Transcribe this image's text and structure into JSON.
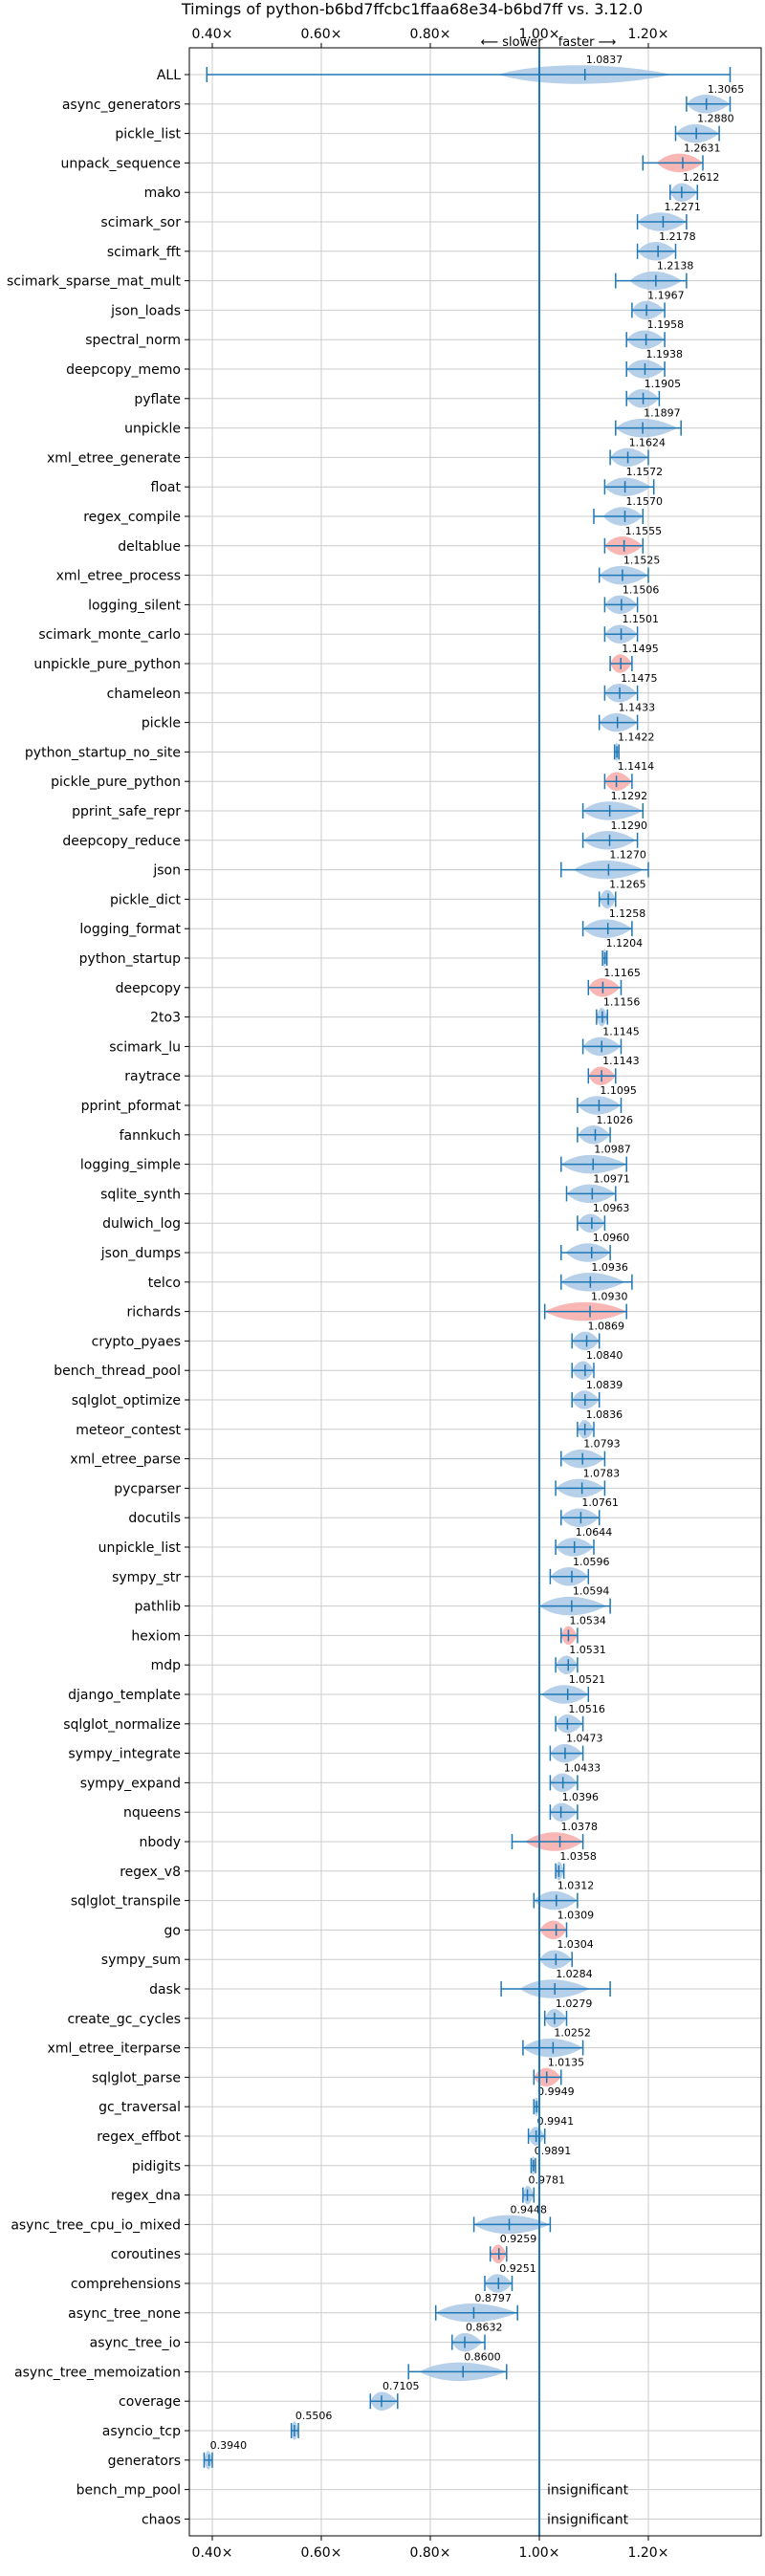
{
  "chart_data": {
    "type": "violin",
    "title": "Timings of python-b6bd7ffcbc1ffaa68e34-b6bd7ff vs. 3.12.0",
    "direction_labels": {
      "slower": "⟵ slower",
      "faster": "faster ⟶"
    },
    "x_axis": {
      "ticks": [
        0.4,
        0.6,
        0.8,
        1.0,
        1.2
      ],
      "tick_labels": [
        "0.40×",
        "0.60×",
        "0.80×",
        "1.00×",
        "1.20×"
      ],
      "range": [
        0.35,
        1.39
      ],
      "reference": 1.0
    },
    "grid": true,
    "colors": {
      "normal": "#1f77b4",
      "normal_fill": "#a9c8e6",
      "highlight_fill": "#f7a9a8",
      "grid": "#cccccc"
    },
    "insignificant_label": "insignificant",
    "benchmarks": [
      {
        "name": "ALL",
        "value": 1.0837,
        "label": "1.0837",
        "min": 0.39,
        "max": 1.35,
        "spread": 0.1,
        "highlight": false
      },
      {
        "name": "async_generators",
        "value": 1.3065,
        "label": "1.3065",
        "min": 1.27,
        "max": 1.35,
        "spread": 0.045,
        "highlight": false
      },
      {
        "name": "pickle_list",
        "value": 1.288,
        "label": "1.2880",
        "min": 1.25,
        "max": 1.33,
        "spread": 0.04,
        "highlight": false
      },
      {
        "name": "unpack_sequence",
        "value": 1.2631,
        "label": "1.2631",
        "min": 1.19,
        "max": 1.3,
        "spread": 0.03,
        "highlight": true
      },
      {
        "name": "mako",
        "value": 1.2612,
        "label": "1.2612",
        "min": 1.24,
        "max": 1.29,
        "spread": 0.02,
        "highlight": false
      },
      {
        "name": "scimark_sor",
        "value": 1.2271,
        "label": "1.2271",
        "min": 1.18,
        "max": 1.27,
        "spread": 0.04,
        "highlight": false
      },
      {
        "name": "scimark_fft",
        "value": 1.2178,
        "label": "1.2178",
        "min": 1.18,
        "max": 1.25,
        "spread": 0.03,
        "highlight": false
      },
      {
        "name": "scimark_sparse_mat_mult",
        "value": 1.2138,
        "label": "1.2138",
        "min": 1.14,
        "max": 1.27,
        "spread": 0.03,
        "highlight": false
      },
      {
        "name": "json_loads",
        "value": 1.1967,
        "label": "1.1967",
        "min": 1.17,
        "max": 1.23,
        "spread": 0.025,
        "highlight": false
      },
      {
        "name": "spectral_norm",
        "value": 1.1958,
        "label": "1.1958",
        "min": 1.16,
        "max": 1.23,
        "spread": 0.03,
        "highlight": false
      },
      {
        "name": "deepcopy_memo",
        "value": 1.1938,
        "label": "1.1938",
        "min": 1.16,
        "max": 1.23,
        "spread": 0.03,
        "highlight": false
      },
      {
        "name": "pyflate",
        "value": 1.1905,
        "label": "1.1905",
        "min": 1.16,
        "max": 1.22,
        "spread": 0.025,
        "highlight": false
      },
      {
        "name": "unpickle",
        "value": 1.1897,
        "label": "1.1897",
        "min": 1.14,
        "max": 1.26,
        "spread": 0.04,
        "highlight": false
      },
      {
        "name": "xml_etree_generate",
        "value": 1.1624,
        "label": "1.1624",
        "min": 1.13,
        "max": 1.2,
        "spread": 0.025,
        "highlight": false
      },
      {
        "name": "float",
        "value": 1.1572,
        "label": "1.1572",
        "min": 1.12,
        "max": 1.21,
        "spread": 0.03,
        "highlight": false
      },
      {
        "name": "regex_compile",
        "value": 1.157,
        "label": "1.1570",
        "min": 1.1,
        "max": 1.19,
        "spread": 0.025,
        "highlight": false
      },
      {
        "name": "deltablue",
        "value": 1.1555,
        "label": "1.1555",
        "min": 1.12,
        "max": 1.19,
        "spread": 0.025,
        "highlight": true
      },
      {
        "name": "xml_etree_process",
        "value": 1.1525,
        "label": "1.1525",
        "min": 1.11,
        "max": 1.2,
        "spread": 0.03,
        "highlight": false
      },
      {
        "name": "logging_silent",
        "value": 1.1506,
        "label": "1.1506",
        "min": 1.12,
        "max": 1.18,
        "spread": 0.025,
        "highlight": false
      },
      {
        "name": "scimark_monte_carlo",
        "value": 1.1501,
        "label": "1.1501",
        "min": 1.12,
        "max": 1.18,
        "spread": 0.025,
        "highlight": false
      },
      {
        "name": "unpickle_pure_python",
        "value": 1.1495,
        "label": "1.1495",
        "min": 1.13,
        "max": 1.17,
        "spread": 0.02,
        "highlight": true
      },
      {
        "name": "chameleon",
        "value": 1.1475,
        "label": "1.1475",
        "min": 1.12,
        "max": 1.18,
        "spread": 0.02,
        "highlight": false
      },
      {
        "name": "pickle",
        "value": 1.1433,
        "label": "1.1433",
        "min": 1.11,
        "max": 1.18,
        "spread": 0.03,
        "highlight": false
      },
      {
        "name": "python_startup_no_site",
        "value": 1.1422,
        "label": "1.1422",
        "min": 1.138,
        "max": 1.146,
        "spread": 0.004,
        "highlight": false
      },
      {
        "name": "pickle_pure_python",
        "value": 1.1414,
        "label": "1.1414",
        "min": 1.12,
        "max": 1.17,
        "spread": 0.02,
        "highlight": true
      },
      {
        "name": "pprint_safe_repr",
        "value": 1.1292,
        "label": "1.1292",
        "min": 1.08,
        "max": 1.19,
        "spread": 0.04,
        "highlight": false
      },
      {
        "name": "deepcopy_reduce",
        "value": 1.129,
        "label": "1.1290",
        "min": 1.08,
        "max": 1.18,
        "spread": 0.03,
        "highlight": false
      },
      {
        "name": "json",
        "value": 1.127,
        "label": "1.1270",
        "min": 1.04,
        "max": 1.2,
        "spread": 0.04,
        "highlight": false
      },
      {
        "name": "pickle_dict",
        "value": 1.1265,
        "label": "1.1265",
        "min": 1.11,
        "max": 1.14,
        "spread": 0.012,
        "highlight": false
      },
      {
        "name": "logging_format",
        "value": 1.1258,
        "label": "1.1258",
        "min": 1.08,
        "max": 1.17,
        "spread": 0.03,
        "highlight": false
      },
      {
        "name": "python_startup",
        "value": 1.1204,
        "label": "1.1204",
        "min": 1.116,
        "max": 1.124,
        "spread": 0.004,
        "highlight": false
      },
      {
        "name": "deepcopy",
        "value": 1.1165,
        "label": "1.1165",
        "min": 1.09,
        "max": 1.15,
        "spread": 0.02,
        "highlight": true
      },
      {
        "name": "2to3",
        "value": 1.1156,
        "label": "1.1156",
        "min": 1.105,
        "max": 1.125,
        "spread": 0.008,
        "highlight": false
      },
      {
        "name": "scimark_lu",
        "value": 1.1145,
        "label": "1.1145",
        "min": 1.08,
        "max": 1.15,
        "spread": 0.025,
        "highlight": false
      },
      {
        "name": "raytrace",
        "value": 1.1143,
        "label": "1.1143",
        "min": 1.09,
        "max": 1.14,
        "spread": 0.018,
        "highlight": true
      },
      {
        "name": "pprint_pformat",
        "value": 1.1095,
        "label": "1.1095",
        "min": 1.07,
        "max": 1.15,
        "spread": 0.025,
        "highlight": false
      },
      {
        "name": "fannkuch",
        "value": 1.1026,
        "label": "1.1026",
        "min": 1.07,
        "max": 1.13,
        "spread": 0.02,
        "highlight": false
      },
      {
        "name": "logging_simple",
        "value": 1.0987,
        "label": "1.0987",
        "min": 1.04,
        "max": 1.16,
        "spread": 0.04,
        "highlight": false
      },
      {
        "name": "sqlite_synth",
        "value": 1.0971,
        "label": "1.0971",
        "min": 1.05,
        "max": 1.14,
        "spread": 0.03,
        "highlight": false
      },
      {
        "name": "dulwich_log",
        "value": 1.0963,
        "label": "1.0963",
        "min": 1.07,
        "max": 1.12,
        "spread": 0.02,
        "highlight": false
      },
      {
        "name": "json_dumps",
        "value": 1.096,
        "label": "1.0960",
        "min": 1.04,
        "max": 1.13,
        "spread": 0.03,
        "highlight": false
      },
      {
        "name": "telco",
        "value": 1.0936,
        "label": "1.0936",
        "min": 1.04,
        "max": 1.17,
        "spread": 0.04,
        "highlight": false
      },
      {
        "name": "richards",
        "value": 1.093,
        "label": "1.0930",
        "min": 1.01,
        "max": 1.16,
        "spread": 0.06,
        "highlight": true
      },
      {
        "name": "crypto_pyaes",
        "value": 1.0869,
        "label": "1.0869",
        "min": 1.06,
        "max": 1.11,
        "spread": 0.02,
        "highlight": false
      },
      {
        "name": "bench_thread_pool",
        "value": 1.084,
        "label": "1.0840",
        "min": 1.06,
        "max": 1.1,
        "spread": 0.018,
        "highlight": false
      },
      {
        "name": "sqlglot_optimize",
        "value": 1.0839,
        "label": "1.0839",
        "min": 1.06,
        "max": 1.11,
        "spread": 0.02,
        "highlight": false
      },
      {
        "name": "meteor_contest",
        "value": 1.0836,
        "label": "1.0836",
        "min": 1.07,
        "max": 1.1,
        "spread": 0.012,
        "highlight": false
      },
      {
        "name": "xml_etree_parse",
        "value": 1.0793,
        "label": "1.0793",
        "min": 1.04,
        "max": 1.12,
        "spread": 0.03,
        "highlight": false
      },
      {
        "name": "pycparser",
        "value": 1.0783,
        "label": "1.0783",
        "min": 1.03,
        "max": 1.12,
        "spread": 0.035,
        "highlight": false
      },
      {
        "name": "docutils",
        "value": 1.0761,
        "label": "1.0761",
        "min": 1.04,
        "max": 1.11,
        "spread": 0.025,
        "highlight": false
      },
      {
        "name": "unpickle_list",
        "value": 1.0644,
        "label": "1.0644",
        "min": 1.03,
        "max": 1.1,
        "spread": 0.025,
        "highlight": false
      },
      {
        "name": "sympy_str",
        "value": 1.0596,
        "label": "1.0596",
        "min": 1.02,
        "max": 1.09,
        "spread": 0.025,
        "highlight": false
      },
      {
        "name": "pathlib",
        "value": 1.0594,
        "label": "1.0594",
        "min": 1.0,
        "max": 1.13,
        "spread": 0.04,
        "highlight": false
      },
      {
        "name": "hexiom",
        "value": 1.0534,
        "label": "1.0534",
        "min": 1.04,
        "max": 1.07,
        "spread": 0.015,
        "highlight": true
      },
      {
        "name": "mdp",
        "value": 1.0531,
        "label": "1.0531",
        "min": 1.03,
        "max": 1.07,
        "spread": 0.015,
        "highlight": false
      },
      {
        "name": "django_template",
        "value": 1.0521,
        "label": "1.0521",
        "min": 1.0,
        "max": 1.09,
        "spread": 0.03,
        "highlight": false
      },
      {
        "name": "sqlglot_normalize",
        "value": 1.0516,
        "label": "1.0516",
        "min": 1.03,
        "max": 1.08,
        "spread": 0.018,
        "highlight": false
      },
      {
        "name": "sympy_integrate",
        "value": 1.0473,
        "label": "1.0473",
        "min": 1.02,
        "max": 1.08,
        "spread": 0.02,
        "highlight": false
      },
      {
        "name": "sympy_expand",
        "value": 1.0433,
        "label": "1.0433",
        "min": 1.02,
        "max": 1.07,
        "spread": 0.02,
        "highlight": false
      },
      {
        "name": "nqueens",
        "value": 1.0396,
        "label": "1.0396",
        "min": 1.02,
        "max": 1.07,
        "spread": 0.02,
        "highlight": false
      },
      {
        "name": "nbody",
        "value": 1.0378,
        "label": "1.0378",
        "min": 0.95,
        "max": 1.08,
        "spread": 0.04,
        "highlight": true
      },
      {
        "name": "regex_v8",
        "value": 1.0358,
        "label": "1.0358",
        "min": 1.03,
        "max": 1.045,
        "spread": 0.008,
        "highlight": false
      },
      {
        "name": "sqlglot_transpile",
        "value": 1.0312,
        "label": "1.0312",
        "min": 0.99,
        "max": 1.07,
        "spread": 0.03,
        "highlight": false
      },
      {
        "name": "go",
        "value": 1.0309,
        "label": "1.0309",
        "min": 1.0,
        "max": 1.05,
        "spread": 0.02,
        "highlight": true
      },
      {
        "name": "sympy_sum",
        "value": 1.0304,
        "label": "1.0304",
        "min": 1.0,
        "max": 1.06,
        "spread": 0.02,
        "highlight": false
      },
      {
        "name": "dask",
        "value": 1.0284,
        "label": "1.0284",
        "min": 0.93,
        "max": 1.13,
        "spread": 0.04,
        "highlight": false
      },
      {
        "name": "create_gc_cycles",
        "value": 1.0279,
        "label": "1.0279",
        "min": 1.01,
        "max": 1.05,
        "spread": 0.015,
        "highlight": false
      },
      {
        "name": "xml_etree_iterparse",
        "value": 1.0252,
        "label": "1.0252",
        "min": 0.97,
        "max": 1.08,
        "spread": 0.035,
        "highlight": false
      },
      {
        "name": "sqlglot_parse",
        "value": 1.0135,
        "label": "1.0135",
        "min": 0.99,
        "max": 1.04,
        "spread": 0.02,
        "highlight": true
      },
      {
        "name": "gc_traversal",
        "value": 0.9949,
        "label": "0.9949",
        "min": 0.99,
        "max": 1.0,
        "spread": 0.005,
        "highlight": false
      },
      {
        "name": "regex_effbot",
        "value": 0.9941,
        "label": "0.9941",
        "min": 0.98,
        "max": 1.01,
        "spread": 0.015,
        "highlight": false
      },
      {
        "name": "pidigits",
        "value": 0.9891,
        "label": "0.9891",
        "min": 0.985,
        "max": 0.993,
        "spread": 0.003,
        "highlight": false
      },
      {
        "name": "regex_dna",
        "value": 0.9781,
        "label": "0.9781",
        "min": 0.97,
        "max": 0.99,
        "spread": 0.008,
        "highlight": false
      },
      {
        "name": "async_tree_cpu_io_mixed",
        "value": 0.9448,
        "label": "0.9448",
        "min": 0.88,
        "max": 1.02,
        "spread": 0.05,
        "highlight": false
      },
      {
        "name": "coroutines",
        "value": 0.9259,
        "label": "0.9259",
        "min": 0.91,
        "max": 0.94,
        "spread": 0.012,
        "highlight": true
      },
      {
        "name": "comprehensions",
        "value": 0.9251,
        "label": "0.9251",
        "min": 0.9,
        "max": 0.95,
        "spread": 0.018,
        "highlight": false
      },
      {
        "name": "async_tree_none",
        "value": 0.8797,
        "label": "0.8797",
        "min": 0.81,
        "max": 0.96,
        "spread": 0.05,
        "highlight": false
      },
      {
        "name": "async_tree_io",
        "value": 0.8632,
        "label": "0.8632",
        "min": 0.84,
        "max": 0.9,
        "spread": 0.02,
        "highlight": false
      },
      {
        "name": "async_tree_memoization",
        "value": 0.86,
        "label": "0.8600",
        "min": 0.76,
        "max": 0.94,
        "spread": 0.05,
        "highlight": false
      },
      {
        "name": "coverage",
        "value": 0.7105,
        "label": "0.7105",
        "min": 0.69,
        "max": 0.74,
        "spread": 0.02,
        "highlight": false
      },
      {
        "name": "asyncio_tcp",
        "value": 0.5506,
        "label": "0.5506",
        "min": 0.545,
        "max": 0.558,
        "spread": 0.005,
        "highlight": false
      },
      {
        "name": "generators",
        "value": 0.394,
        "label": "0.3940",
        "min": 0.385,
        "max": 0.4,
        "spread": 0.006,
        "highlight": false
      },
      {
        "name": "bench_mp_pool",
        "value": null,
        "label": "insignificant",
        "min": null,
        "max": null,
        "spread": 0,
        "highlight": false
      },
      {
        "name": "chaos",
        "value": null,
        "label": "insignificant",
        "min": null,
        "max": null,
        "spread": 0,
        "highlight": false
      }
    ]
  }
}
